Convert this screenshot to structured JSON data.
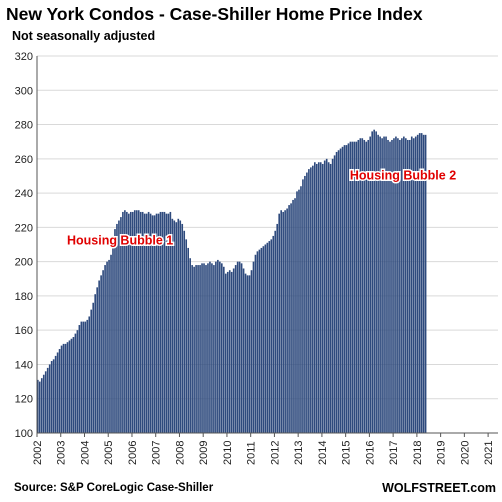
{
  "chart_data": {
    "type": "bar",
    "title": "New York Condos - Case-Shiller Home Price Index",
    "subtitle": "Not seasonally adjusted",
    "source": "Source: S&P CoreLogic Case-Shiller",
    "brand": "WOLFSTREET.com",
    "ylim": [
      100,
      320
    ],
    "yticks": [
      100,
      120,
      140,
      160,
      180,
      200,
      220,
      240,
      260,
      280,
      300,
      320
    ],
    "xticks": [
      "2002",
      "2003",
      "2004",
      "2005",
      "2006",
      "2007",
      "2008",
      "2009",
      "2010",
      "2011",
      "2012",
      "2013",
      "2014",
      "2015",
      "2016",
      "2017",
      "2018",
      "2019",
      "2020",
      "2021"
    ],
    "grid": true,
    "bar_color": "#2e4a7d",
    "annotations": [
      {
        "text": "Housing Bubble 1",
        "x": "2005-07",
        "y": 210,
        "color": "#e00000"
      },
      {
        "text": "Housing Bubble 2",
        "x": "2017-06",
        "y": 248,
        "color": "#e00000"
      }
    ],
    "series": [
      {
        "values": [
          131,
          130,
          132,
          134,
          136,
          138,
          140,
          142,
          143,
          145,
          147,
          149,
          151,
          152,
          152,
          153,
          154,
          155,
          156,
          158,
          160,
          163,
          165,
          165,
          165,
          166,
          168,
          172,
          176,
          181,
          185,
          189,
          192,
          195,
          198,
          200,
          201,
          204,
          210,
          219,
          222,
          224,
          226,
          229,
          230,
          229,
          228,
          229,
          229,
          230,
          230,
          230,
          229,
          229,
          228,
          228,
          229,
          228,
          227,
          227,
          228,
          228,
          229,
          229,
          229,
          228,
          228,
          229,
          225,
          224,
          223,
          225,
          224,
          222,
          218,
          213,
          208,
          202,
          198,
          197,
          198,
          198,
          198,
          199,
          199,
          198,
          199,
          200,
          199,
          198,
          200,
          201,
          200,
          199,
          197,
          193,
          194,
          195,
          194,
          196,
          198,
          200,
          200,
          199,
          196,
          193,
          192,
          192,
          195,
          200,
          204,
          206,
          207,
          208,
          209,
          210,
          211,
          212,
          213,
          215,
          218,
          222,
          228,
          230,
          229,
          230,
          231,
          233,
          234,
          236,
          237,
          241,
          242,
          244,
          248,
          250,
          252,
          254,
          255,
          256,
          258,
          257,
          258,
          258,
          257,
          259,
          260,
          258,
          257,
          260,
          262,
          264,
          265,
          266,
          267,
          268,
          268,
          269,
          270,
          270,
          270,
          270,
          271,
          272,
          272,
          271,
          270,
          271,
          273,
          276,
          277,
          276,
          274,
          273,
          272,
          273,
          273,
          271,
          270,
          271,
          272,
          273,
          272,
          271,
          272,
          273,
          272,
          271,
          271,
          273,
          272,
          273,
          274,
          275,
          275,
          274,
          274
        ]
      }
    ]
  }
}
